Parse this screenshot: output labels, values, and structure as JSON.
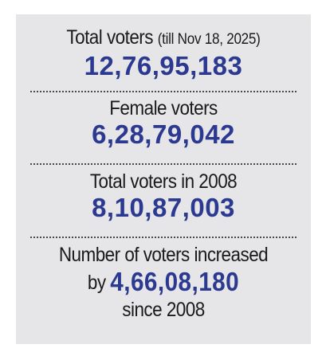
{
  "colors": {
    "background": "#e6e6e8",
    "value": "#2b3990",
    "text": "#1a1a1a",
    "divider": "#4a4a4a"
  },
  "stats": {
    "total_voters": {
      "label": "Total voters",
      "note": "(till Nov 18, 2025)",
      "value": "12,76,95,183"
    },
    "female_voters": {
      "label": "Female voters",
      "value": "6,28,79,042"
    },
    "total_2008": {
      "label": "Total voters in 2008",
      "value": "8,10,87,003"
    },
    "increase": {
      "line1": "Number of voters increased",
      "prefix": "by",
      "value": "4,66,08,180",
      "suffix": "since 2008"
    }
  }
}
